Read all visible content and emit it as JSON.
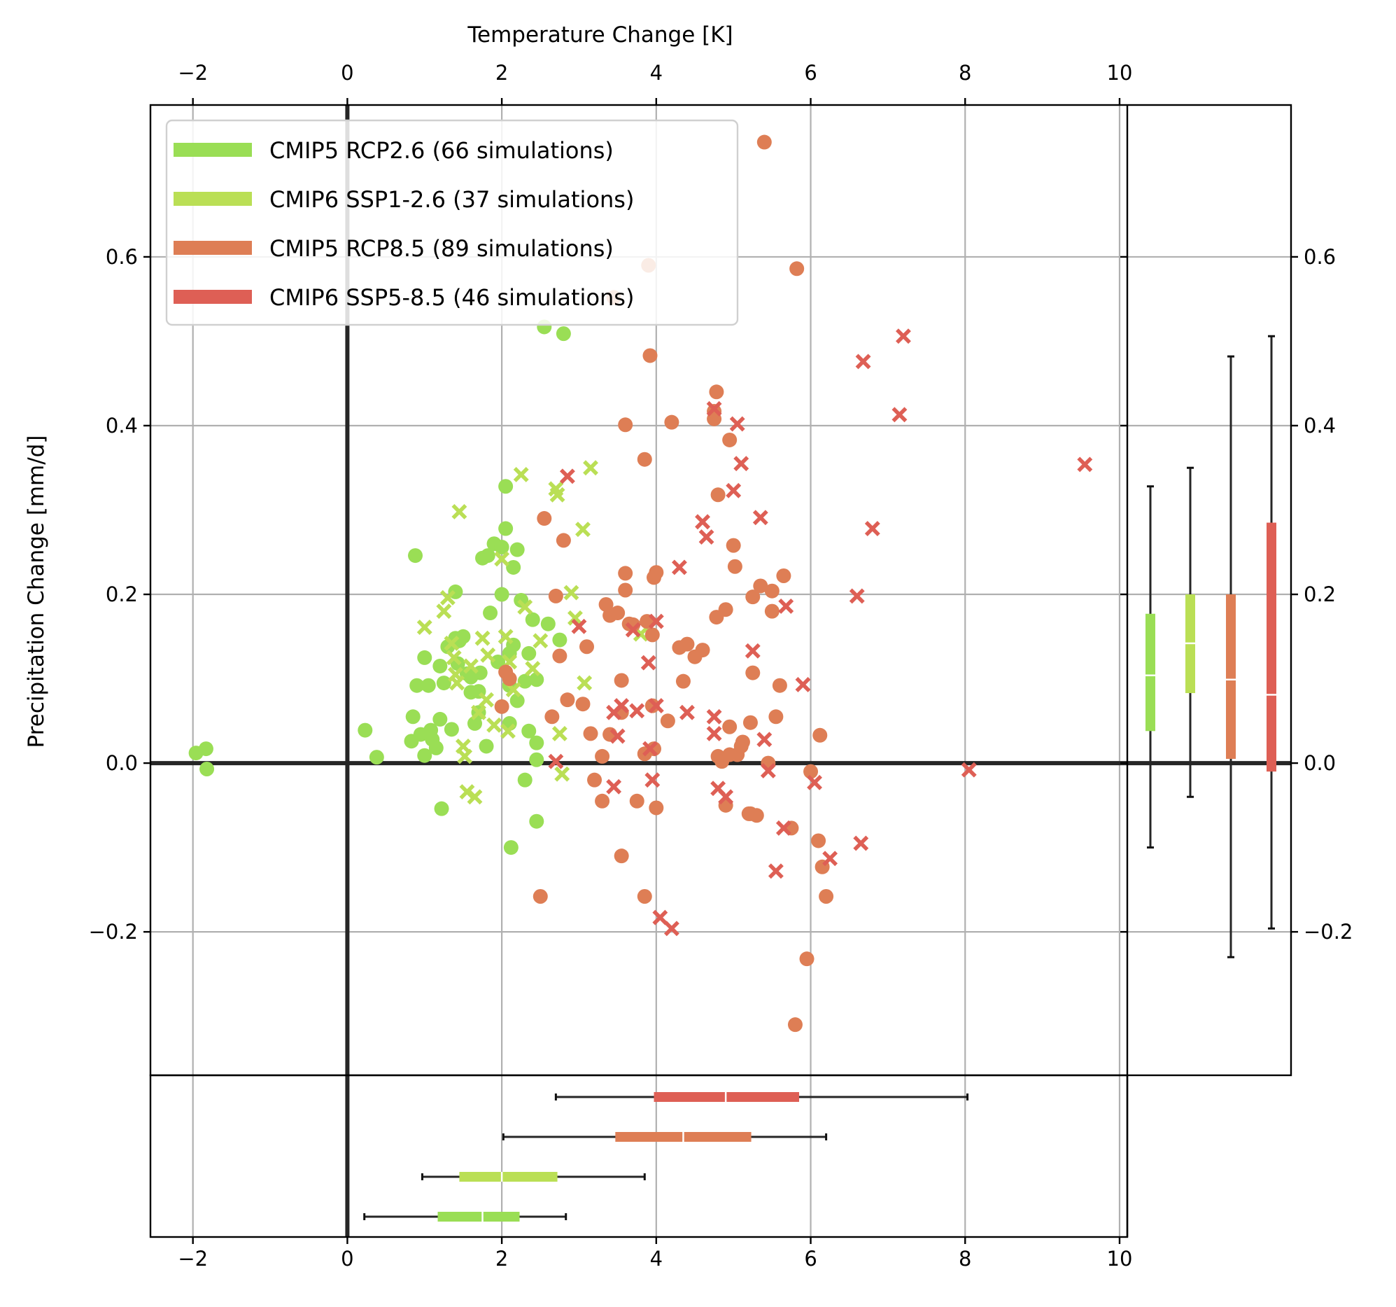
{
  "chart_data": {
    "type": "scatter",
    "title": "",
    "xlabel": "Temperature Change [K]",
    "ylabel": "Precipitation Change [mm/d]",
    "xlim": [
      -2.55,
      10.1
    ],
    "ylim": [
      -0.37,
      0.78
    ],
    "xticks": [
      "−2",
      "0",
      "2",
      "4",
      "6",
      "8",
      "10"
    ],
    "xtick_values": [
      -2,
      0,
      2,
      4,
      6,
      8,
      10
    ],
    "yticks": [
      "−0.2",
      "0.0",
      "0.2",
      "0.4",
      "0.6"
    ],
    "ytick_values": [
      -0.2,
      0.0,
      0.2,
      0.4,
      0.6
    ],
    "grid": true,
    "legend_position": "top-left",
    "series": [
      {
        "name": "CMIP5 RCP2.6 (66 simulations)",
        "color": "#9ADE55",
        "marker": "circle",
        "points": [
          [
            -1.96,
            0.012
          ],
          [
            -1.83,
            0.017
          ],
          [
            -1.82,
            -0.007
          ],
          [
            0.23,
            0.039
          ],
          [
            0.38,
            0.007
          ],
          [
            0.88,
            0.246
          ],
          [
            0.85,
            0.055
          ],
          [
            0.83,
            0.026
          ],
          [
            0.9,
            0.092
          ],
          [
            1.0,
            0.125
          ],
          [
            1.0,
            0.009
          ],
          [
            1.05,
            0.092
          ],
          [
            1.08,
            0.039
          ],
          [
            1.1,
            0.028
          ],
          [
            1.15,
            0.018
          ],
          [
            1.2,
            0.052
          ],
          [
            1.2,
            0.115
          ],
          [
            1.22,
            -0.054
          ],
          [
            1.3,
            0.138
          ],
          [
            1.35,
            0.04
          ],
          [
            1.4,
            0.203
          ],
          [
            1.4,
            0.148
          ],
          [
            1.43,
            0.118
          ],
          [
            1.45,
            0.145
          ],
          [
            1.55,
            0.106
          ],
          [
            1.6,
            0.084
          ],
          [
            1.65,
            0.047
          ],
          [
            1.7,
            0.06
          ],
          [
            1.72,
            0.107
          ],
          [
            1.75,
            0.243
          ],
          [
            1.8,
            0.02
          ],
          [
            1.82,
            0.246
          ],
          [
            1.85,
            0.178
          ],
          [
            1.9,
            0.26
          ],
          [
            2.0,
            0.256
          ],
          [
            2.0,
            0.2
          ],
          [
            2.05,
            0.328
          ],
          [
            2.05,
            0.278
          ],
          [
            2.1,
            0.13
          ],
          [
            2.15,
            0.232
          ],
          [
            2.15,
            0.14
          ],
          [
            2.1,
            0.047
          ],
          [
            2.2,
            0.074
          ],
          [
            2.2,
            0.253
          ],
          [
            2.25,
            0.193
          ],
          [
            2.3,
            0.097
          ],
          [
            2.3,
            -0.02
          ],
          [
            2.35,
            0.13
          ],
          [
            2.4,
            0.17
          ],
          [
            2.45,
            0.099
          ],
          [
            2.45,
            0.024
          ],
          [
            2.45,
            0.004
          ],
          [
            2.45,
            -0.069
          ],
          [
            2.55,
            0.517
          ],
          [
            2.6,
            0.165
          ],
          [
            2.75,
            0.146
          ],
          [
            2.8,
            0.509
          ],
          [
            2.12,
            -0.1
          ],
          [
            1.6,
            0.102
          ],
          [
            1.7,
            0.085
          ],
          [
            1.95,
            0.12
          ],
          [
            0.95,
            0.034
          ],
          [
            1.25,
            0.095
          ],
          [
            2.35,
            0.038
          ],
          [
            1.5,
            0.15
          ],
          [
            2.1,
            0.092
          ]
        ]
      },
      {
        "name": "CMIP6 SSP1-2.6 (37 simulations)",
        "color": "#BADF55",
        "marker": "x",
        "points": [
          [
            1.0,
            0.161
          ],
          [
            1.25,
            0.18
          ],
          [
            1.3,
            0.196
          ],
          [
            1.35,
            0.142
          ],
          [
            1.4,
            0.105
          ],
          [
            1.42,
            0.095
          ],
          [
            1.45,
            0.298
          ],
          [
            1.5,
            0.02
          ],
          [
            1.52,
            0.008
          ],
          [
            1.55,
            -0.034
          ],
          [
            1.65,
            -0.04
          ],
          [
            1.7,
            0.06
          ],
          [
            1.75,
            0.148
          ],
          [
            1.8,
            0.075
          ],
          [
            1.82,
            0.128
          ],
          [
            2.0,
            0.242
          ],
          [
            2.05,
            0.15
          ],
          [
            2.08,
            0.038
          ],
          [
            2.1,
            0.12
          ],
          [
            2.15,
            0.087
          ],
          [
            2.25,
            0.342
          ],
          [
            2.3,
            0.185
          ],
          [
            2.4,
            0.112
          ],
          [
            2.5,
            0.145
          ],
          [
            2.7,
            0.325
          ],
          [
            2.72,
            0.318
          ],
          [
            2.75,
            0.035
          ],
          [
            2.78,
            -0.013
          ],
          [
            2.9,
            0.202
          ],
          [
            2.95,
            0.172
          ],
          [
            3.05,
            0.277
          ],
          [
            3.07,
            0.095
          ],
          [
            3.15,
            0.35
          ],
          [
            3.8,
            0.153
          ],
          [
            1.6,
            0.115
          ],
          [
            1.38,
            0.125
          ],
          [
            1.9,
            0.045
          ]
        ]
      },
      {
        "name": "CMIP5 RCP8.5 (89 simulations)",
        "color": "#DE7E55",
        "marker": "circle",
        "points": [
          [
            2.0,
            0.067
          ],
          [
            2.05,
            0.108
          ],
          [
            2.1,
            0.1
          ],
          [
            2.5,
            -0.158
          ],
          [
            2.65,
            0.055
          ],
          [
            2.7,
            0.198
          ],
          [
            2.75,
            0.127
          ],
          [
            2.8,
            0.264
          ],
          [
            2.85,
            0.075
          ],
          [
            3.05,
            0.07
          ],
          [
            3.1,
            0.138
          ],
          [
            3.15,
            0.035
          ],
          [
            3.2,
            -0.02
          ],
          [
            3.3,
            0.008
          ],
          [
            3.35,
            0.188
          ],
          [
            3.4,
            0.175
          ],
          [
            3.4,
            0.034
          ],
          [
            3.45,
            0.552
          ],
          [
            3.5,
            0.178
          ],
          [
            3.55,
            -0.11
          ],
          [
            3.55,
            0.098
          ],
          [
            3.6,
            0.401
          ],
          [
            3.6,
            0.225
          ],
          [
            3.6,
            0.205
          ],
          [
            3.65,
            0.165
          ],
          [
            3.7,
            0.164
          ],
          [
            3.75,
            -0.045
          ],
          [
            3.85,
            0.36
          ],
          [
            3.85,
            0.011
          ],
          [
            3.88,
            0.168
          ],
          [
            3.9,
            0.59
          ],
          [
            3.92,
            0.483
          ],
          [
            3.95,
            0.068
          ],
          [
            3.95,
            0.152
          ],
          [
            3.97,
            0.22
          ],
          [
            4.0,
            0.226
          ],
          [
            4.0,
            -0.053
          ],
          [
            4.15,
            0.05
          ],
          [
            4.2,
            0.404
          ],
          [
            4.3,
            0.137
          ],
          [
            4.35,
            0.097
          ],
          [
            4.4,
            0.141
          ],
          [
            4.5,
            0.126
          ],
          [
            4.6,
            0.134
          ],
          [
            4.75,
            0.408
          ],
          [
            4.75,
            0.417
          ],
          [
            4.78,
            0.44
          ],
          [
            4.78,
            0.173
          ],
          [
            4.8,
            0.318
          ],
          [
            4.8,
            0.008
          ],
          [
            4.85,
            0.002
          ],
          [
            4.9,
            0.182
          ],
          [
            4.9,
            -0.05
          ],
          [
            4.95,
            0.383
          ],
          [
            4.95,
            0.043
          ],
          [
            5.0,
            0.258
          ],
          [
            5.02,
            0.233
          ],
          [
            5.05,
            0.01
          ],
          [
            5.1,
            0.02
          ],
          [
            5.12,
            0.025
          ],
          [
            5.2,
            -0.06
          ],
          [
            5.22,
            0.048
          ],
          [
            5.25,
            0.107
          ],
          [
            5.25,
            0.197
          ],
          [
            5.3,
            -0.062
          ],
          [
            5.35,
            0.21
          ],
          [
            5.4,
            0.736
          ],
          [
            5.45,
            0.0
          ],
          [
            5.5,
            0.18
          ],
          [
            5.5,
            0.204
          ],
          [
            5.55,
            0.055
          ],
          [
            5.6,
            0.092
          ],
          [
            5.65,
            0.222
          ],
          [
            5.75,
            -0.077
          ],
          [
            5.8,
            -0.31
          ],
          [
            5.82,
            0.586
          ],
          [
            5.95,
            -0.232
          ],
          [
            6.0,
            -0.01
          ],
          [
            6.1,
            -0.092
          ],
          [
            6.12,
            0.033
          ],
          [
            6.15,
            -0.123
          ],
          [
            6.2,
            -0.158
          ],
          [
            3.85,
            -0.158
          ],
          [
            3.3,
            -0.045
          ],
          [
            4.95,
            0.01
          ],
          [
            5.22,
            -0.06
          ],
          [
            3.55,
            0.06
          ],
          [
            3.97,
            0.017
          ],
          [
            2.55,
            0.29
          ]
        ]
      },
      {
        "name": "CMIP6 SSP5-8.5 (46 simulations)",
        "color": "#DE5F55",
        "marker": "x",
        "points": [
          [
            2.7,
            0.002
          ],
          [
            2.85,
            0.34
          ],
          [
            3.0,
            0.162
          ],
          [
            3.45,
            0.06
          ],
          [
            3.45,
            -0.028
          ],
          [
            3.5,
            0.032
          ],
          [
            3.55,
            0.068
          ],
          [
            3.7,
            0.158
          ],
          [
            3.75,
            0.062
          ],
          [
            3.9,
            0.119
          ],
          [
            3.92,
            0.017
          ],
          [
            3.95,
            -0.02
          ],
          [
            4.0,
            0.068
          ],
          [
            4.0,
            0.168
          ],
          [
            4.05,
            -0.183
          ],
          [
            4.2,
            -0.196
          ],
          [
            4.3,
            0.232
          ],
          [
            4.4,
            0.06
          ],
          [
            4.6,
            0.286
          ],
          [
            4.65,
            0.268
          ],
          [
            4.75,
            0.055
          ],
          [
            4.75,
            0.035
          ],
          [
            4.75,
            0.42
          ],
          [
            4.8,
            -0.03
          ],
          [
            4.9,
            -0.04
          ],
          [
            5.0,
            0.323
          ],
          [
            5.05,
            0.402
          ],
          [
            5.1,
            0.355
          ],
          [
            5.25,
            0.133
          ],
          [
            5.35,
            0.291
          ],
          [
            5.4,
            0.028
          ],
          [
            5.45,
            -0.009
          ],
          [
            5.55,
            -0.128
          ],
          [
            5.65,
            -0.077
          ],
          [
            5.68,
            0.186
          ],
          [
            5.9,
            0.093
          ],
          [
            6.05,
            -0.023
          ],
          [
            6.25,
            -0.113
          ],
          [
            6.6,
            0.198
          ],
          [
            6.65,
            -0.095
          ],
          [
            6.68,
            0.476
          ],
          [
            6.8,
            0.278
          ],
          [
            7.15,
            0.413
          ],
          [
            7.2,
            0.506
          ],
          [
            8.05,
            -0.008
          ],
          [
            9.55,
            0.354
          ]
        ]
      }
    ],
    "right_boxplots": {
      "axis": "precipitation",
      "boxes": [
        {
          "name": "CMIP5 RCP2.6",
          "color": "#9ADE55",
          "whisker_low": -0.1,
          "q1": 0.038,
          "median": 0.104,
          "q3": 0.177,
          "whisker_high": 0.328
        },
        {
          "name": "CMIP6 SSP1-2.6",
          "color": "#BADF55",
          "whisker_low": -0.04,
          "q1": 0.083,
          "median": 0.142,
          "q3": 0.2,
          "whisker_high": 0.35
        },
        {
          "name": "CMIP5 RCP8.5",
          "color": "#DE7E55",
          "whisker_low": -0.23,
          "q1": 0.005,
          "median": 0.099,
          "q3": 0.2,
          "whisker_high": 0.482
        },
        {
          "name": "CMIP6 SSP5-8.5",
          "color": "#DE5F55",
          "whisker_low": -0.196,
          "q1": -0.01,
          "median": 0.081,
          "q3": 0.285,
          "whisker_high": 0.506
        }
      ]
    },
    "bottom_boxplots": {
      "axis": "temperature",
      "boxes": [
        {
          "name": "CMIP5 RCP2.6",
          "color": "#9ADE55",
          "whisker_low": 0.22,
          "q1": 1.17,
          "median": 1.75,
          "q3": 2.23,
          "whisker_high": 2.83
        },
        {
          "name": "CMIP6 SSP1-2.6",
          "color": "#BADF55",
          "whisker_low": 0.97,
          "q1": 1.45,
          "median": 2.0,
          "q3": 2.72,
          "whisker_high": 3.85
        },
        {
          "name": "CMIP5 RCP8.5",
          "color": "#DE7E55",
          "whisker_low": 2.02,
          "q1": 3.47,
          "median": 4.35,
          "q3": 5.23,
          "whisker_high": 6.2
        },
        {
          "name": "CMIP6 SSP5-8.5",
          "color": "#DE5F55",
          "whisker_low": 2.7,
          "q1": 3.97,
          "median": 4.9,
          "q3": 5.85,
          "whisker_high": 8.03
        }
      ]
    }
  }
}
